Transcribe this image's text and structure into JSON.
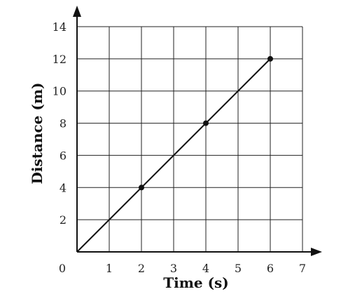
{
  "chart_data": {
    "type": "line",
    "xlabel": "Time (s)",
    "ylabel": "Distance (m)",
    "xlim": [
      0,
      7
    ],
    "ylim": [
      0,
      14
    ],
    "x_ticks": [
      "0",
      "1",
      "2",
      "3",
      "4",
      "5",
      "6",
      "7"
    ],
    "y_ticks": [
      "2",
      "4",
      "6",
      "8",
      "10",
      "12",
      "14"
    ],
    "grid": true,
    "series": [
      {
        "line": [
          [
            0,
            0
          ],
          [
            6,
            12
          ]
        ],
        "points": [
          [
            2,
            4
          ],
          [
            4,
            8
          ],
          [
            6,
            12
          ]
        ]
      }
    ],
    "colors": {
      "line": "#111111",
      "grid": "#222222"
    }
  }
}
